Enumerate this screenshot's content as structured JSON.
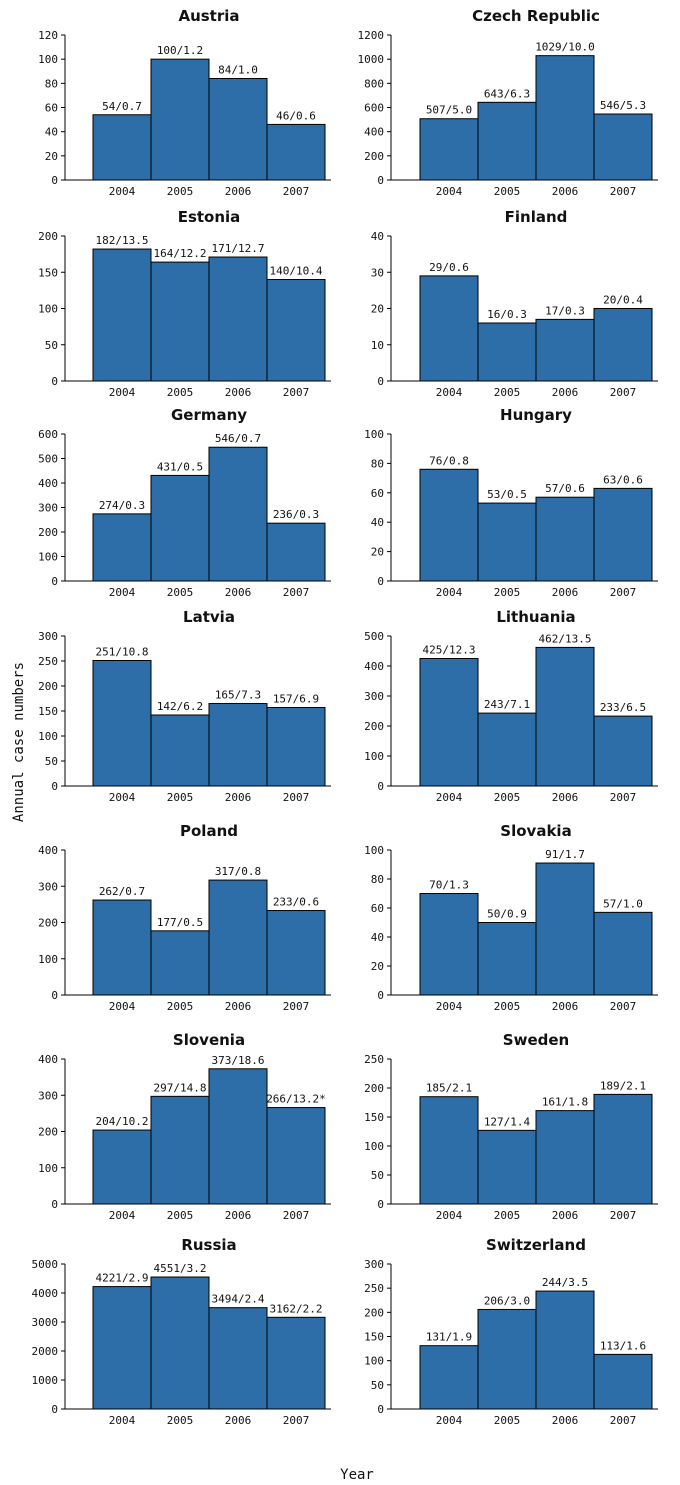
{
  "chart_data": {
    "type": "bar",
    "ylabel": "Annual case numbers",
    "xlabel": "Year",
    "categories": [
      "2004",
      "2005",
      "2006",
      "2007"
    ],
    "bar_color": "#2d6ea8",
    "panels": [
      {
        "title": "Austria",
        "ylim": [
          0,
          120
        ],
        "yticks": [
          0,
          20,
          40,
          60,
          80,
          100,
          120
        ],
        "values": [
          54,
          100,
          84,
          46
        ],
        "labels": [
          "54/0.7",
          "100/1.2",
          "84/1.0",
          "46/0.6"
        ]
      },
      {
        "title": "Czech Republic",
        "ylim": [
          0,
          1200
        ],
        "yticks": [
          0,
          200,
          400,
          600,
          800,
          1000,
          1200
        ],
        "values": [
          507,
          643,
          1029,
          546
        ],
        "labels": [
          "507/5.0",
          "643/6.3",
          "1029/10.0",
          "546/5.3"
        ]
      },
      {
        "title": "Estonia",
        "ylim": [
          0,
          200
        ],
        "yticks": [
          0,
          50,
          100,
          150,
          200
        ],
        "values": [
          182,
          164,
          171,
          140
        ],
        "labels": [
          "182/13.5",
          "164/12.2",
          "171/12.7",
          "140/10.4"
        ]
      },
      {
        "title": "Finland",
        "ylim": [
          0,
          40
        ],
        "yticks": [
          0,
          10,
          20,
          30,
          40
        ],
        "values": [
          29,
          16,
          17,
          20
        ],
        "labels": [
          "29/0.6",
          "16/0.3",
          "17/0.3",
          "20/0.4"
        ]
      },
      {
        "title": "Germany",
        "ylim": [
          0,
          600
        ],
        "yticks": [
          0,
          100,
          200,
          300,
          400,
          500,
          600
        ],
        "values": [
          274,
          431,
          546,
          236
        ],
        "labels": [
          "274/0.3",
          "431/0.5",
          "546/0.7",
          "236/0.3"
        ]
      },
      {
        "title": "Hungary",
        "ylim": [
          0,
          100
        ],
        "yticks": [
          0,
          20,
          40,
          60,
          80,
          100
        ],
        "values": [
          76,
          53,
          57,
          63
        ],
        "labels": [
          "76/0.8",
          "53/0.5",
          "57/0.6",
          "63/0.6"
        ]
      },
      {
        "title": "Latvia",
        "ylim": [
          0,
          300
        ],
        "yticks": [
          0,
          50,
          100,
          150,
          200,
          250,
          300
        ],
        "values": [
          251,
          142,
          165,
          157
        ],
        "labels": [
          "251/10.8",
          "142/6.2",
          "165/7.3",
          "157/6.9"
        ]
      },
      {
        "title": "Lithuania",
        "ylim": [
          0,
          500
        ],
        "yticks": [
          0,
          100,
          200,
          300,
          400,
          500
        ],
        "values": [
          425,
          243,
          462,
          233
        ],
        "labels": [
          "425/12.3",
          "243/7.1",
          "462/13.5",
          "233/6.5"
        ]
      },
      {
        "title": "Poland",
        "ylim": [
          0,
          400
        ],
        "yticks": [
          0,
          100,
          200,
          300,
          400
        ],
        "values": [
          262,
          177,
          317,
          233
        ],
        "labels": [
          "262/0.7",
          "177/0.5",
          "317/0.8",
          "233/0.6"
        ]
      },
      {
        "title": "Slovakia",
        "ylim": [
          0,
          100
        ],
        "yticks": [
          0,
          20,
          40,
          60,
          80,
          100
        ],
        "values": [
          70,
          50,
          91,
          57
        ],
        "labels": [
          "70/1.3",
          "50/0.9",
          "91/1.7",
          "57/1.0"
        ]
      },
      {
        "title": "Slovenia",
        "ylim": [
          0,
          400
        ],
        "yticks": [
          0,
          100,
          200,
          300,
          400
        ],
        "values": [
          204,
          297,
          373,
          266
        ],
        "labels": [
          "204/10.2",
          "297/14.8",
          "373/18.6",
          "266/13.2*"
        ]
      },
      {
        "title": "Sweden",
        "ylim": [
          0,
          250
        ],
        "yticks": [
          0,
          50,
          100,
          150,
          200,
          250
        ],
        "values": [
          185,
          127,
          161,
          189
        ],
        "labels": [
          "185/2.1",
          "127/1.4",
          "161/1.8",
          "189/2.1"
        ]
      },
      {
        "title": "Russia",
        "ylim": [
          0,
          5000
        ],
        "yticks": [
          0,
          1000,
          2000,
          3000,
          4000,
          5000
        ],
        "values": [
          4221,
          4551,
          3494,
          3162
        ],
        "labels": [
          "4221/2.9",
          "4551/3.2",
          "3494/2.4",
          "3162/2.2"
        ]
      },
      {
        "title": "Switzerland",
        "ylim": [
          0,
          300
        ],
        "yticks": [
          0,
          50,
          100,
          150,
          200,
          250,
          300
        ],
        "values": [
          131,
          206,
          244,
          113
        ],
        "labels": [
          "131/1.9",
          "206/3.0",
          "244/3.5",
          "113/1.6"
        ]
      }
    ]
  }
}
